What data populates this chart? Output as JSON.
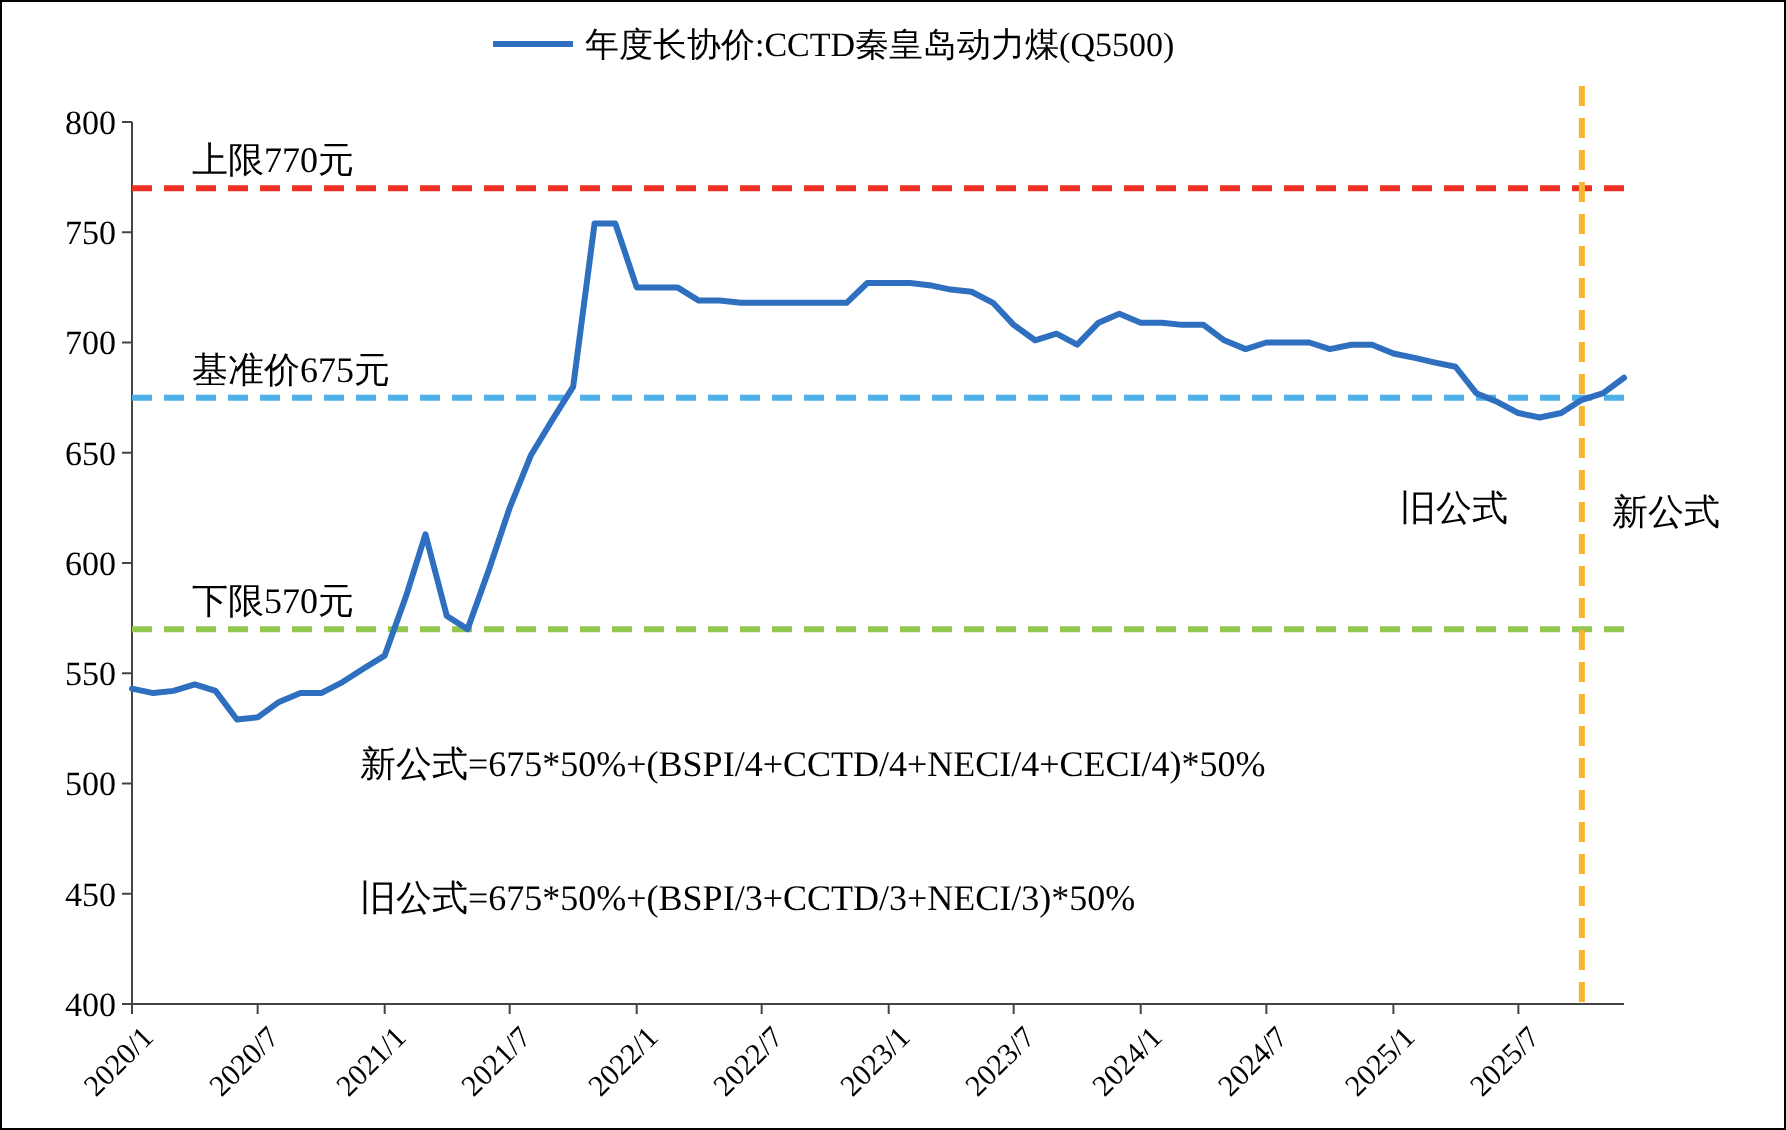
{
  "chart_data": {
    "type": "line",
    "legend": "top",
    "grid": false,
    "line_style": "solid",
    "marker": "none",
    "x": [
      "2020-01",
      "2020-02",
      "2020-03",
      "2020-04",
      "2020-05",
      "2020-06",
      "2020-07",
      "2020-08",
      "2020-09",
      "2020-10",
      "2020-11",
      "2020-12",
      "2021-01",
      "2021-02",
      "2021-03",
      "2021-04",
      "2021-05",
      "2021-06",
      "2021-07",
      "2021-08",
      "2021-09",
      "2021-10",
      "2021-11",
      "2021-12",
      "2022-01",
      "2022-02",
      "2022-03",
      "2022-04",
      "2022-05",
      "2022-06",
      "2022-07",
      "2022-08",
      "2022-09",
      "2022-10",
      "2022-11",
      "2022-12",
      "2023-01",
      "2023-02",
      "2023-03",
      "2023-04",
      "2023-05",
      "2023-06",
      "2023-07",
      "2023-08",
      "2023-09",
      "2023-10",
      "2023-11",
      "2023-12",
      "2024-01",
      "2024-02",
      "2024-03",
      "2024-04",
      "2024-05",
      "2024-06",
      "2024-07",
      "2024-08",
      "2024-09",
      "2024-10",
      "2024-11",
      "2024-12",
      "2025-01",
      "2025-02",
      "2025-03",
      "2025-04",
      "2025-05",
      "2025-06",
      "2025-07",
      "2025-08",
      "2025-09",
      "2025-10",
      "2025-11",
      "2025-12"
    ],
    "series": [
      {
        "name": "年度长协价:CCTD秦皇岛动力煤(Q5500)",
        "color": "#2e6fbf",
        "values": [
          543,
          541,
          542,
          545,
          542,
          529,
          530,
          537,
          541,
          541,
          546,
          552,
          558,
          585,
          613,
          576,
          570,
          597,
          625,
          649,
          665,
          680,
          754,
          754,
          725,
          725,
          725,
          719,
          719,
          718,
          718,
          718,
          718,
          718,
          718,
          727,
          727,
          727,
          726,
          724,
          723,
          718,
          708,
          701,
          704,
          699,
          709,
          713,
          709,
          709,
          708,
          708,
          701,
          697,
          700,
          700,
          700,
          697,
          699,
          699,
          695,
          693,
          691,
          689,
          677,
          673,
          668,
          666,
          668,
          674,
          677,
          684
        ]
      }
    ],
    "xlim": [
      "2020-01",
      "2025-12"
    ],
    "xticks": [
      {
        "value": "2020-01",
        "label": "2020/1"
      },
      {
        "value": "2020-07",
        "label": "2020/7"
      },
      {
        "value": "2021-01",
        "label": "2021/1"
      },
      {
        "value": "2021-07",
        "label": "2021/7"
      },
      {
        "value": "2022-01",
        "label": "2022/1"
      },
      {
        "value": "2022-07",
        "label": "2022/7"
      },
      {
        "value": "2023-01",
        "label": "2023/1"
      },
      {
        "value": "2023-07",
        "label": "2023/7"
      },
      {
        "value": "2024-01",
        "label": "2024/1"
      },
      {
        "value": "2024-07",
        "label": "2024/7"
      },
      {
        "value": "2025-01",
        "label": "2025/1"
      },
      {
        "value": "2025-07",
        "label": "2025/7"
      }
    ],
    "ylim": [
      400,
      800
    ],
    "yticks": [
      400,
      450,
      500,
      550,
      600,
      650,
      700,
      750,
      800
    ],
    "ref_lines": [
      {
        "axis": "y",
        "value": 770,
        "label": "上限770元",
        "color": "#ee3124",
        "line_style": "dashed"
      },
      {
        "axis": "y",
        "value": 675,
        "label": "基准价675元",
        "color": "#4fb0e8",
        "line_style": "dashed"
      },
      {
        "axis": "y",
        "value": 570,
        "label": "下限570元",
        "color": "#92c84f",
        "line_style": "dashed"
      },
      {
        "axis": "x",
        "value": "2025-10",
        "label": null,
        "color": "#f5b731",
        "line_style": "dashed"
      }
    ],
    "annotations": [
      "旧公式",
      "新公式",
      "新公式=675*50%+(BSPI/4+CCTD/4+NECI/4+CECI/4)*50%",
      "旧公式=675*50%+(BSPI/3+CCTD/3+NECI/3)*50%"
    ]
  }
}
